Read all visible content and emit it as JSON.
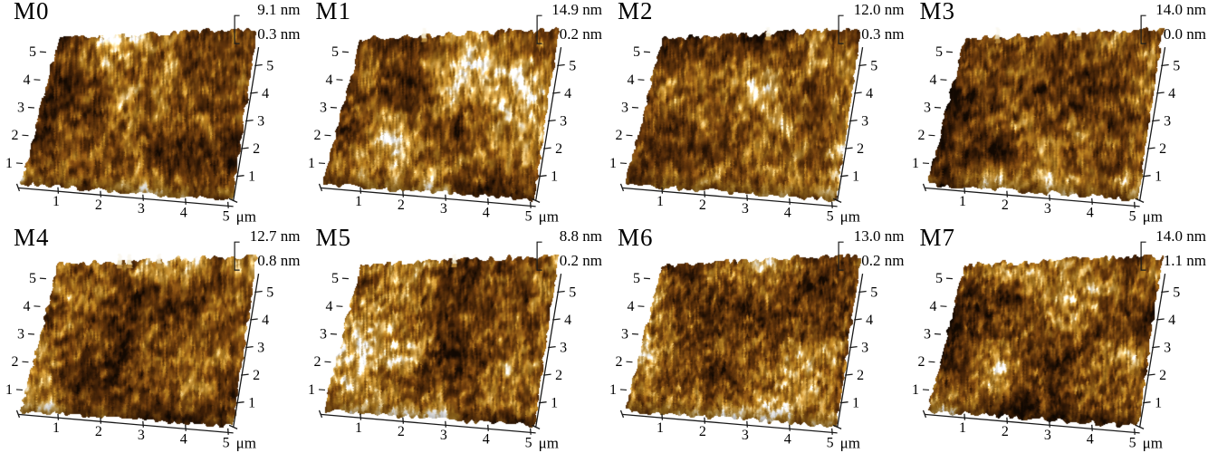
{
  "figure": {
    "type": "afm-3d-topography-grid",
    "background": "#ffffff",
    "grid": {
      "rows": 2,
      "cols": 4
    },
    "panels": [
      {
        "id": "M0",
        "z_max": "9.1 nm",
        "z_scale": "0.3 nm",
        "seed": 11,
        "tone": 0,
        "grain": 1.0,
        "tall_peaks": 0
      },
      {
        "id": "M1",
        "z_max": "14.9 nm",
        "z_scale": "0.2 nm",
        "seed": 23,
        "tone": 0.02,
        "grain": 1.0,
        "tall_peaks": 1
      },
      {
        "id": "M2",
        "z_max": "12.0 nm",
        "z_scale": "0.3 nm",
        "seed": 37,
        "tone": 0,
        "grain": 1.0,
        "tall_peaks": 1
      },
      {
        "id": "M3",
        "z_max": "14.0 nm",
        "z_scale": "0.0 nm",
        "seed": 41,
        "tone": -0.04,
        "grain": 1.0,
        "tall_peaks": 2
      },
      {
        "id": "M4",
        "z_max": "12.7 nm",
        "z_scale": "0.8 nm",
        "seed": 53,
        "tone": -0.01,
        "grain": 1.1,
        "tall_peaks": 3
      },
      {
        "id": "M5",
        "z_max": "8.8 nm",
        "z_scale": "0.2 nm",
        "seed": 67,
        "tone": 0.04,
        "grain": 1.15,
        "tall_peaks": 1
      },
      {
        "id": "M6",
        "z_max": "13.0 nm",
        "z_scale": "0.2 nm",
        "seed": 79,
        "tone": 0.02,
        "grain": 1.35,
        "tall_peaks": 0
      },
      {
        "id": "M7",
        "z_max": "14.0 nm",
        "z_scale": "1.1 nm",
        "seed": 97,
        "tone": -0.01,
        "grain": 1.2,
        "tall_peaks": 0
      }
    ],
    "axes": {
      "x_ticks": [
        "1",
        "2",
        "3",
        "4",
        "5"
      ],
      "x_unit": "μm",
      "y_left_ticks": [
        "5",
        "4",
        "3",
        "2",
        "1"
      ],
      "y_right_ticks": [
        "5",
        "4",
        "3",
        "2",
        "1"
      ]
    },
    "palette": [
      "#140a03",
      "#3a1d07",
      "#63360c",
      "#855114",
      "#a8761f",
      "#c69740",
      "#e3c483",
      "#f6eedd",
      "#ffffff"
    ]
  }
}
